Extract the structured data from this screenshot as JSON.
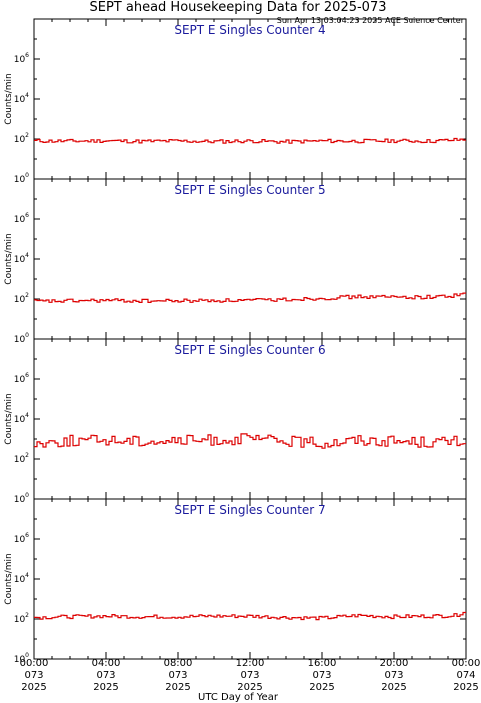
{
  "figure": {
    "title": "SEPT ahead Housekeeping Data for 2025-073",
    "timestamp": "Sun Apr 13 03:04:23 2025 ACE Science Center",
    "xlabel": "UTC Day of Year",
    "ylabel": "Counts/min"
  },
  "colors": {
    "trace": "#dd0000",
    "panel_title": "#1a1a9c",
    "axes": "#000000"
  },
  "chart_data": [
    {
      "type": "line",
      "title": "SEPT E Singles Counter 4",
      "ylabel": "Counts/min",
      "xlabel": "UTC Day of Year",
      "yscale": "log",
      "ylim": [
        1,
        100000000
      ],
      "yticks": [
        1,
        100,
        10000,
        1000000
      ],
      "ytick_labels": [
        [
          "10",
          "0"
        ],
        [
          "10",
          "2"
        ],
        [
          "10",
          "4"
        ],
        [
          "10",
          "6"
        ]
      ],
      "xlim": [
        0,
        24
      ],
      "xticks": [
        0,
        4,
        8,
        12,
        16,
        20,
        24
      ],
      "xtick_labels": [
        [
          "00:00",
          "073",
          "2025"
        ],
        [
          "04:00",
          "073",
          "2025"
        ],
        [
          "08:00",
          "073",
          "2025"
        ],
        [
          "12:00",
          "073",
          "2025"
        ],
        [
          "16:00",
          "073",
          "2025"
        ],
        [
          "20:00",
          "073",
          "2025"
        ],
        [
          "00:00",
          "074",
          "2025"
        ]
      ],
      "series": [
        {
          "x_hours": [
            0,
            2,
            4,
            6,
            8,
            10,
            12,
            14,
            16,
            18,
            20,
            22,
            23.5,
            24
          ],
          "values": [
            80,
            78,
            82,
            76,
            80,
            74,
            80,
            72,
            80,
            78,
            82,
            78,
            90,
            95
          ]
        }
      ]
    },
    {
      "type": "line",
      "title": "SEPT E Singles Counter 5",
      "ylabel": "Counts/min",
      "xlabel": "UTC Day of Year",
      "yscale": "log",
      "ylim": [
        1,
        100000000
      ],
      "yticks": [
        1,
        100,
        10000,
        1000000
      ],
      "ytick_labels": [
        [
          "10",
          "0"
        ],
        [
          "10",
          "2"
        ],
        [
          "10",
          "4"
        ],
        [
          "10",
          "6"
        ]
      ],
      "xlim": [
        0,
        24
      ],
      "xticks": [
        0,
        4,
        8,
        12,
        16,
        20,
        24
      ],
      "xtick_labels": [
        [
          "00:00",
          "073",
          "2025"
        ],
        [
          "04:00",
          "073",
          "2025"
        ],
        [
          "08:00",
          "073",
          "2025"
        ],
        [
          "12:00",
          "073",
          "2025"
        ],
        [
          "16:00",
          "073",
          "2025"
        ],
        [
          "20:00",
          "073",
          "2025"
        ],
        [
          "00:00",
          "074",
          "2025"
        ]
      ],
      "series": [
        {
          "x_hours": [
            0,
            2,
            4,
            6,
            8,
            10,
            12,
            14,
            16,
            18,
            20,
            22,
            23.5,
            24
          ],
          "values": [
            75,
            80,
            85,
            80,
            80,
            85,
            85,
            95,
            110,
            130,
            125,
            125,
            150,
            230
          ]
        }
      ]
    },
    {
      "type": "line",
      "title": "SEPT E Singles Counter 6",
      "ylabel": "Counts/min",
      "xlabel": "UTC Day of Year",
      "yscale": "log",
      "ylim": [
        1,
        100000000
      ],
      "yticks": [
        1,
        100,
        10000,
        1000000
      ],
      "ytick_labels": [
        [
          "10",
          "0"
        ],
        [
          "10",
          "2"
        ],
        [
          "10",
          "4"
        ],
        [
          "10",
          "6"
        ]
      ],
      "xlim": [
        0,
        24
      ],
      "xticks": [
        0,
        4,
        8,
        12,
        16,
        20,
        24
      ],
      "xtick_labels": [
        [
          "00:00",
          "073",
          "2025"
        ],
        [
          "04:00",
          "073",
          "2025"
        ],
        [
          "08:00",
          "073",
          "2025"
        ],
        [
          "12:00",
          "073",
          "2025"
        ],
        [
          "16:00",
          "073",
          "2025"
        ],
        [
          "20:00",
          "073",
          "2025"
        ],
        [
          "00:00",
          "074",
          "2025"
        ]
      ],
      "series": [
        {
          "x_hours": [
            0,
            2,
            4,
            6,
            8,
            10,
            12,
            14,
            16,
            18,
            20,
            22,
            23.5,
            24
          ],
          "values": [
            600,
            800,
            900,
            800,
            800,
            900,
            1000,
            800,
            600,
            900,
            800,
            700,
            750,
            800
          ]
        }
      ]
    },
    {
      "type": "line",
      "title": "SEPT E Singles Counter 7",
      "ylabel": "Counts/min",
      "xlabel": "UTC Day of Year",
      "yscale": "log",
      "ylim": [
        1,
        100000000
      ],
      "yticks": [
        1,
        100,
        10000,
        1000000
      ],
      "ytick_labels": [
        [
          "10",
          "0"
        ],
        [
          "10",
          "2"
        ],
        [
          "10",
          "4"
        ],
        [
          "10",
          "6"
        ]
      ],
      "xlim": [
        0,
        24
      ],
      "xticks": [
        0,
        4,
        8,
        12,
        16,
        20,
        24
      ],
      "xtick_labels": [
        [
          "00:00",
          "073",
          "2025"
        ],
        [
          "04:00",
          "073",
          "2025"
        ],
        [
          "08:00",
          "073",
          "2025"
        ],
        [
          "12:00",
          "073",
          "2025"
        ],
        [
          "16:00",
          "073",
          "2025"
        ],
        [
          "20:00",
          "073",
          "2025"
        ],
        [
          "00:00",
          "074",
          "2025"
        ]
      ],
      "series": [
        {
          "x_hours": [
            0,
            2,
            4,
            6,
            8,
            10,
            12,
            14,
            16,
            18,
            20,
            22,
            23.5,
            24
          ],
          "values": [
            120,
            130,
            140,
            130,
            130,
            140,
            140,
            120,
            110,
            150,
            130,
            140,
            150,
            260
          ]
        }
      ]
    }
  ]
}
